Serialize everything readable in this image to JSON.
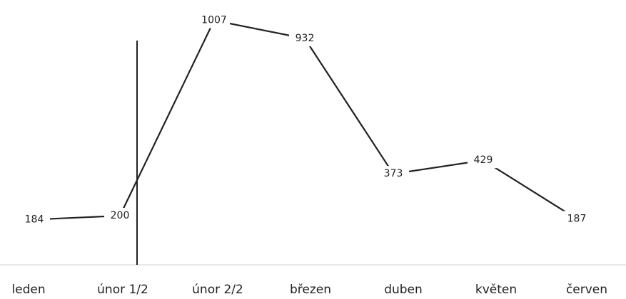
{
  "chart_data": {
    "type": "line",
    "categories": [
      "leden",
      "únor 1/2",
      "únor 2/2",
      "březen",
      "duben",
      "květen",
      "červen"
    ],
    "values": [
      184,
      200,
      1007,
      932,
      373,
      429,
      187
    ],
    "color": "#222222"
  }
}
